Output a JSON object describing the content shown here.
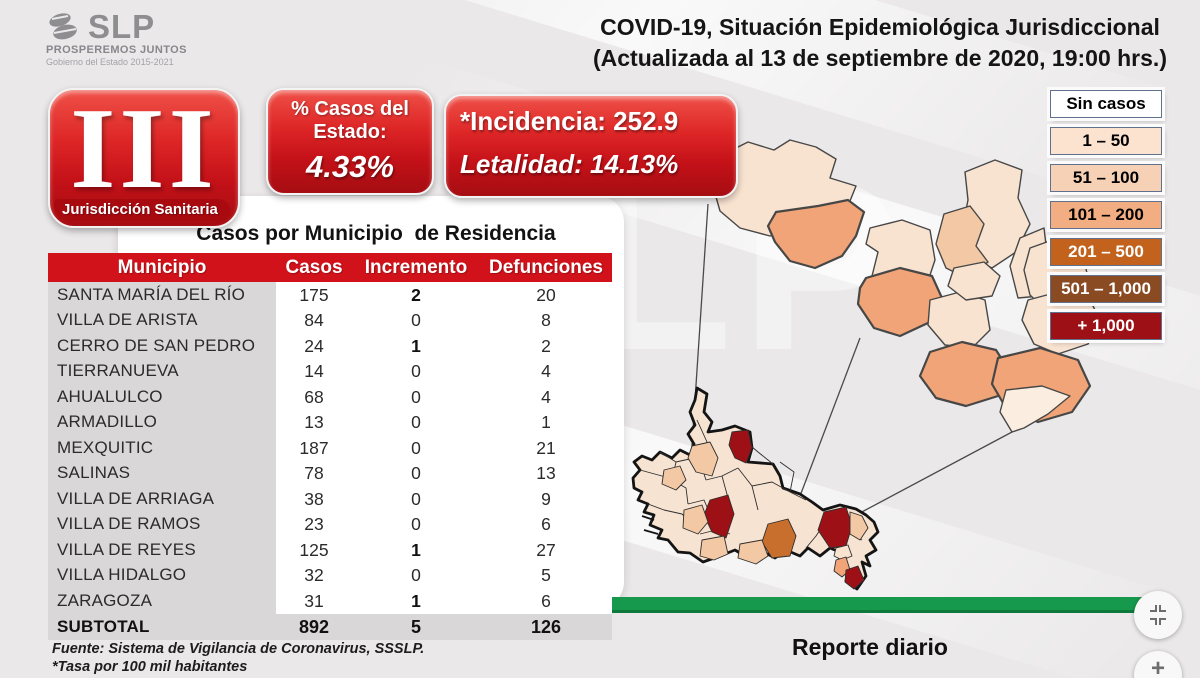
{
  "header": {
    "logo": {
      "brand": "SLP",
      "tagline": "PROSPEREMOS JUNTOS",
      "subline": "Gobierno del Estado 2015-2021"
    },
    "title_line1": "COVID-19, Situación Epidemiológica Jurisdiccional",
    "title_line2": "(Actualizada al 13 de septiembre de 2020, 19:00 hrs.)"
  },
  "jurisdiction_badge": {
    "numeral": "III",
    "label": "Jurisdicción Sanitaria"
  },
  "stat_boxes": {
    "percent_box": {
      "label": "% Casos del Estado:",
      "value": "4.33%"
    },
    "rates_box": {
      "incidencia": "*Incidencia: 252.9",
      "letalidad": "Letalidad: 14.13%"
    }
  },
  "table": {
    "title": "Casos por Municipio  de Residencia",
    "columns": [
      "Municipio",
      "Casos",
      "Incremento",
      "Defunciones"
    ],
    "rows": [
      {
        "municipio": "SANTA MARÍA DEL RÍO",
        "casos": "175",
        "incremento": "2",
        "defunciones": "20"
      },
      {
        "municipio": "VILLA DE ARISTA",
        "casos": "84",
        "incremento": "0",
        "defunciones": "8"
      },
      {
        "municipio": "CERRO DE SAN PEDRO",
        "casos": "24",
        "incremento": "1",
        "defunciones": "2"
      },
      {
        "municipio": "TIERRANUEVA",
        "casos": "14",
        "incremento": "0",
        "defunciones": "4"
      },
      {
        "municipio": "AHUALULCO",
        "casos": "68",
        "incremento": "0",
        "defunciones": "4"
      },
      {
        "municipio": "ARMADILLO",
        "casos": "13",
        "incremento": "0",
        "defunciones": "1"
      },
      {
        "municipio": "MEXQUITIC",
        "casos": "187",
        "incremento": "0",
        "defunciones": "21"
      },
      {
        "municipio": "SALINAS",
        "casos": "78",
        "incremento": "0",
        "defunciones": "13"
      },
      {
        "municipio": "VILLA DE ARRIAGA",
        "casos": "38",
        "incremento": "0",
        "defunciones": "9"
      },
      {
        "municipio": "VILLA DE RAMOS",
        "casos": "23",
        "incremento": "0",
        "defunciones": "6"
      },
      {
        "municipio": "VILLA DE REYES",
        "casos": "125",
        "incremento": "1",
        "defunciones": "27"
      },
      {
        "municipio": "VILLA HIDALGO",
        "casos": "32",
        "incremento": "0",
        "defunciones": "5"
      },
      {
        "municipio": "ZARAGOZA",
        "casos": "31",
        "incremento": "1",
        "defunciones": "6"
      }
    ],
    "subtotal": {
      "municipio": "SUBTOTAL",
      "casos": "892",
      "incremento": "5",
      "defunciones": "126"
    },
    "footnote1": "Fuente: Sistema de Vigilancia de Coronavirus, SSSLP.",
    "footnote2": "*Tasa por 100 mil habitantes"
  },
  "legend": {
    "items": [
      {
        "label": "Sin casos",
        "bg": "#ffffff",
        "fg": "#000000"
      },
      {
        "label": "1 – 50",
        "bg": "#fbe3cf",
        "fg": "#000000"
      },
      {
        "label": "51 – 100",
        "bg": "#f7d1b5",
        "fg": "#000000"
      },
      {
        "label": "101 – 200",
        "bg": "#f2ae82",
        "fg": "#000000"
      },
      {
        "label": "201 – 500",
        "bg": "#c3621c",
        "fg": "#ffffff"
      },
      {
        "label": "501 – 1,000",
        "bg": "#8a4a22",
        "fg": "#ffffff"
      },
      {
        "label": "+ 1,000",
        "bg": "#9d1116",
        "fg": "#ffffff"
      }
    ]
  },
  "map": {
    "caption": "Reporte diario"
  },
  "watermark": "SLP",
  "icons": {
    "collapse": "compress-arrows-icon",
    "zoom_in": "plus-icon"
  },
  "colors": {
    "accent_red": "#d2121a",
    "green_bar": "#17994d",
    "gray_cell": "#d9d7d8",
    "map_light": "#f8e2d0",
    "map_medium": "#f3c8a4",
    "map_orange": "#f0a477",
    "map_deep_orange": "#c96f2d",
    "map_dark_red": "#9d1116"
  }
}
